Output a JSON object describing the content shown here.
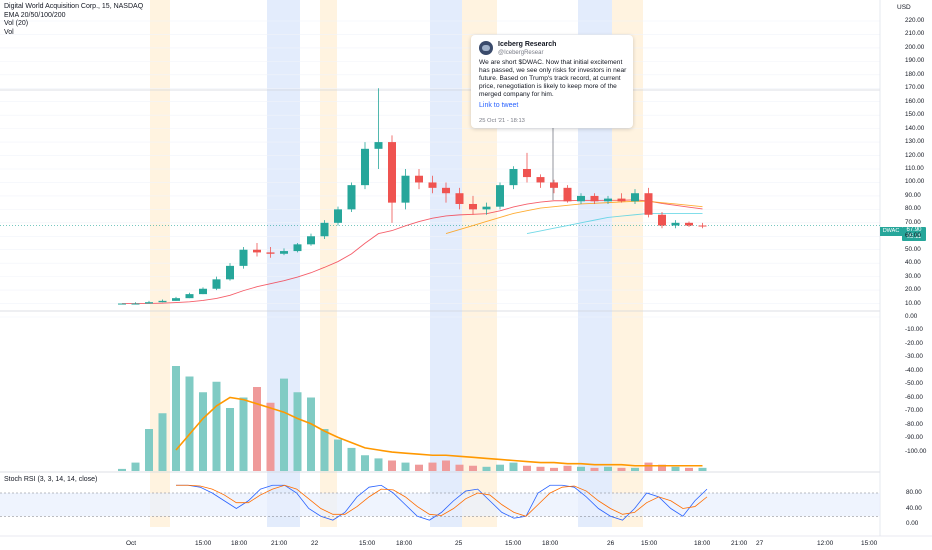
{
  "header": {
    "title": "Digital World Acquisition Corp., 15, NASDAQ",
    "ema_label": "EMA 20/50/100/200",
    "vol_label": "Vol (20)",
    "vol_short": "Vol",
    "currency": "USD"
  },
  "stoch_rsi_title": "Stoch RSI (3, 3, 14, 14, close)",
  "tweet": {
    "author": "Iceberg Research",
    "handle": "@IcebergResear",
    "text": "We are short $DWAC. Now that initial excitement has passed, we see only risks for investors in near future. Based on Trump's track record, at current price, renegotiation is likely to keep more of the merged company for him.",
    "link": "Link to tweet",
    "date": "25 Oct '21 - 18:13"
  },
  "ticker_tag": "DWAC",
  "price_tag": {
    "price": "67.90",
    "countdown": "05:11"
  },
  "price_axis_labels": [
    "220.00",
    "210.00",
    "200.00",
    "190.00",
    "180.00",
    "170.00",
    "160.00",
    "150.00",
    "140.00",
    "130.00",
    "120.00",
    "110.00",
    "100.00",
    "90.00",
    "80.00",
    "70.00",
    "60.00",
    "50.00",
    "40.00",
    "30.00",
    "20.00",
    "10.00",
    "0.00",
    "-10.00",
    "-20.00",
    "-30.00",
    "-40.00",
    "-50.00",
    "-60.00",
    "-70.00",
    "-80.00",
    "-90.00",
    "-100.00"
  ],
  "rsi_axis_labels": [
    "80.00",
    "40.00",
    "0.00"
  ],
  "time_axis_labels": [
    "Oct",
    "15:00",
    "18:00",
    "21:00",
    "22",
    "15:00",
    "18:00",
    "25",
    "15:00",
    "18:00",
    "26",
    "15:00",
    "18:00",
    "21:00",
    "27",
    "12:00",
    "15:00"
  ],
  "colors": {
    "up": "#26a69a",
    "down": "#ef5350",
    "ema_fast": "#f23645",
    "ema_mid": "#ff9800",
    "ema_slow": "#4dd0e1",
    "vol_ma": "#ff9800",
    "session_pre": "#fff3e0",
    "session_post": "#e3ecfc"
  },
  "chart_data": [
    {
      "type": "candlestick",
      "title": "Digital World Acquisition Corp., 15, NASDAQ",
      "ylim": [
        -100,
        220
      ],
      "candles": [
        {
          "x": 0,
          "o": 10,
          "h": 10,
          "l": 10,
          "c": 10
        },
        {
          "x": 1,
          "o": 10,
          "h": 11,
          "l": 10,
          "c": 10
        },
        {
          "x": 2,
          "o": 10,
          "h": 12,
          "l": 10,
          "c": 11
        },
        {
          "x": 3,
          "o": 11,
          "h": 13,
          "l": 11,
          "c": 12
        },
        {
          "x": 4,
          "o": 12,
          "h": 15,
          "l": 12,
          "c": 14
        },
        {
          "x": 5,
          "o": 14,
          "h": 18,
          "l": 14,
          "c": 17
        },
        {
          "x": 6,
          "o": 17,
          "h": 22,
          "l": 17,
          "c": 21
        },
        {
          "x": 7,
          "o": 21,
          "h": 30,
          "l": 20,
          "c": 28
        },
        {
          "x": 8,
          "o": 28,
          "h": 40,
          "l": 27,
          "c": 38
        },
        {
          "x": 9,
          "o": 38,
          "h": 52,
          "l": 36,
          "c": 50
        },
        {
          "x": 10,
          "o": 50,
          "h": 55,
          "l": 45,
          "c": 48
        },
        {
          "x": 11,
          "o": 48,
          "h": 52,
          "l": 44,
          "c": 47
        },
        {
          "x": 12,
          "o": 47,
          "h": 51,
          "l": 46,
          "c": 49
        },
        {
          "x": 13,
          "o": 49,
          "h": 55,
          "l": 48,
          "c": 54
        },
        {
          "x": 14,
          "o": 54,
          "h": 62,
          "l": 53,
          "c": 60
        },
        {
          "x": 15,
          "o": 60,
          "h": 72,
          "l": 58,
          "c": 70
        },
        {
          "x": 16,
          "o": 70,
          "h": 82,
          "l": 68,
          "c": 80
        },
        {
          "x": 17,
          "o": 80,
          "h": 100,
          "l": 78,
          "c": 98
        },
        {
          "x": 18,
          "o": 98,
          "h": 130,
          "l": 95,
          "c": 125
        },
        {
          "x": 19,
          "o": 125,
          "h": 170,
          "l": 110,
          "c": 130
        },
        {
          "x": 20,
          "o": 130,
          "h": 135,
          "l": 70,
          "c": 85
        },
        {
          "x": 21,
          "o": 85,
          "h": 110,
          "l": 80,
          "c": 105
        },
        {
          "x": 22,
          "o": 105,
          "h": 110,
          "l": 95,
          "c": 100
        },
        {
          "x": 23,
          "o": 100,
          "h": 105,
          "l": 92,
          "c": 96
        },
        {
          "x": 24,
          "o": 96,
          "h": 100,
          "l": 85,
          "c": 92
        },
        {
          "x": 25,
          "o": 92,
          "h": 96,
          "l": 80,
          "c": 84
        },
        {
          "x": 26,
          "o": 84,
          "h": 90,
          "l": 76,
          "c": 80
        },
        {
          "x": 27,
          "o": 80,
          "h": 85,
          "l": 76,
          "c": 82
        },
        {
          "x": 28,
          "o": 82,
          "h": 100,
          "l": 80,
          "c": 98
        },
        {
          "x": 29,
          "o": 98,
          "h": 112,
          "l": 95,
          "c": 110
        },
        {
          "x": 30,
          "o": 110,
          "h": 122,
          "l": 100,
          "c": 104
        },
        {
          "x": 31,
          "o": 104,
          "h": 106,
          "l": 96,
          "c": 100
        },
        {
          "x": 32,
          "o": 100,
          "h": 102,
          "l": 92,
          "c": 96
        },
        {
          "x": 33,
          "o": 96,
          "h": 98,
          "l": 85,
          "c": 86
        },
        {
          "x": 34,
          "o": 86,
          "h": 92,
          "l": 84,
          "c": 90
        },
        {
          "x": 35,
          "o": 90,
          "h": 92,
          "l": 84,
          "c": 86
        },
        {
          "x": 36,
          "o": 86,
          "h": 90,
          "l": 84,
          "c": 88
        },
        {
          "x": 37,
          "o": 88,
          "h": 92,
          "l": 85,
          "c": 86
        },
        {
          "x": 38,
          "o": 86,
          "h": 95,
          "l": 84,
          "c": 92
        },
        {
          "x": 39,
          "o": 92,
          "h": 96,
          "l": 74,
          "c": 76
        },
        {
          "x": 40,
          "o": 76,
          "h": 78,
          "l": 66,
          "c": 68
        },
        {
          "x": 41,
          "o": 68,
          "h": 72,
          "l": 66,
          "c": 70
        },
        {
          "x": 42,
          "o": 70,
          "h": 71,
          "l": 67,
          "c": 68
        },
        {
          "x": 43,
          "o": 68,
          "h": 70,
          "l": 66,
          "c": 67.9
        }
      ],
      "ema": [
        {
          "name": "EMA 20",
          "values": [
            10,
            10,
            10.1,
            10.3,
            10.7,
            11.3,
            12.3,
            13.8,
            16.1,
            19.6,
            22.5,
            24.8,
            27.0,
            29.7,
            32.9,
            36.9,
            41.2,
            46.9,
            54.8,
            62.0,
            64.2,
            67.8,
            70.9,
            73.4,
            75.1,
            75.9,
            76.3,
            76.8,
            78.9,
            81.8,
            83.9,
            85.4,
            86.4,
            86.4,
            86.7,
            86.6,
            86.7,
            86.7,
            87.1,
            86.2,
            84.4,
            83.0,
            81.6,
            80.3
          ]
        },
        {
          "name": "EMA 50",
          "values": [
            null,
            null,
            null,
            null,
            null,
            null,
            null,
            null,
            null,
            null,
            null,
            null,
            null,
            null,
            null,
            null,
            null,
            null,
            null,
            null,
            null,
            null,
            null,
            null,
            62,
            65,
            68,
            71,
            74,
            77,
            79,
            81,
            82,
            83,
            84,
            84.5,
            85,
            85.5,
            86,
            86,
            85,
            84,
            83,
            82
          ]
        },
        {
          "name": "EMA 100",
          "values": [
            null,
            null,
            null,
            null,
            null,
            null,
            null,
            null,
            null,
            null,
            null,
            null,
            null,
            null,
            null,
            null,
            null,
            null,
            null,
            null,
            null,
            null,
            null,
            null,
            null,
            null,
            null,
            null,
            null,
            null,
            62,
            64,
            66,
            68,
            70,
            72,
            74,
            75,
            76,
            77,
            77,
            77,
            77,
            77
          ]
        }
      ]
    },
    {
      "type": "bar",
      "title": "Vol (20)",
      "categories": [
        "b0",
        "b1",
        "b2",
        "b3",
        "b4",
        "b5",
        "b6",
        "b7",
        "b8",
        "b9",
        "b10",
        "b11",
        "b12",
        "b13",
        "b14",
        "b15",
        "b16",
        "b17",
        "b18",
        "b19",
        "b20",
        "b21",
        "b22",
        "b23",
        "b24",
        "b25",
        "b26",
        "b27",
        "b28",
        "b29",
        "b30",
        "b31",
        "b32",
        "b33",
        "b34",
        "b35",
        "b36",
        "b37",
        "b38",
        "b39",
        "b40",
        "b41",
        "b42",
        "b43"
      ],
      "values": [
        2,
        8,
        40,
        55,
        100,
        90,
        75,
        85,
        60,
        70,
        80,
        65,
        88,
        75,
        70,
        40,
        30,
        22,
        15,
        12,
        10,
        8,
        6,
        8,
        10,
        6,
        5,
        4,
        6,
        8,
        5,
        4,
        3,
        5,
        4,
        3,
        4,
        3,
        3,
        8,
        6,
        4,
        3,
        3
      ],
      "directions": [
        "up",
        "up",
        "up",
        "up",
        "up",
        "up",
        "up",
        "up",
        "up",
        "up",
        "down",
        "down",
        "up",
        "up",
        "up",
        "up",
        "up",
        "up",
        "up",
        "up",
        "down",
        "up",
        "down",
        "down",
        "down",
        "down",
        "down",
        "up",
        "up",
        "up",
        "down",
        "down",
        "down",
        "down",
        "up",
        "down",
        "up",
        "down",
        "up",
        "down",
        "down",
        "up",
        "down",
        "up"
      ],
      "ma": [
        null,
        null,
        null,
        null,
        20,
        35,
        50,
        62,
        70,
        68,
        64,
        60,
        56,
        50,
        45,
        38,
        32,
        27,
        22,
        20,
        18,
        17,
        16,
        15,
        15,
        14,
        13,
        12,
        11,
        10,
        9,
        8,
        8,
        7,
        7,
        6,
        6,
        6,
        5,
        5,
        5,
        5,
        5,
        5
      ]
    },
    {
      "type": "line",
      "title": "Stoch RSI (3, 3, 14, 14, close)",
      "ylim": [
        0,
        100
      ],
      "series": [
        {
          "name": "K",
          "values": [
            100,
            100,
            95,
            80,
            60,
            40,
            60,
            90,
            100,
            100,
            80,
            40,
            20,
            10,
            30,
            70,
            95,
            100,
            80,
            50,
            20,
            10,
            30,
            60,
            85,
            90,
            60,
            30,
            15,
            20,
            80,
            100,
            100,
            95,
            70,
            40,
            20,
            10,
            40,
            80,
            70,
            40,
            20,
            60,
            90
          ]
        },
        {
          "name": "D",
          "values": [
            100,
            100,
            98,
            90,
            75,
            55,
            55,
            75,
            90,
            100,
            90,
            65,
            40,
            25,
            25,
            45,
            70,
            90,
            88,
            70,
            45,
            25,
            22,
            40,
            65,
            80,
            75,
            50,
            30,
            20,
            50,
            80,
            95,
            98,
            85,
            60,
            40,
            25,
            30,
            55,
            70,
            60,
            40,
            45,
            70
          ]
        }
      ],
      "bands": [
        20,
        80
      ]
    }
  ]
}
